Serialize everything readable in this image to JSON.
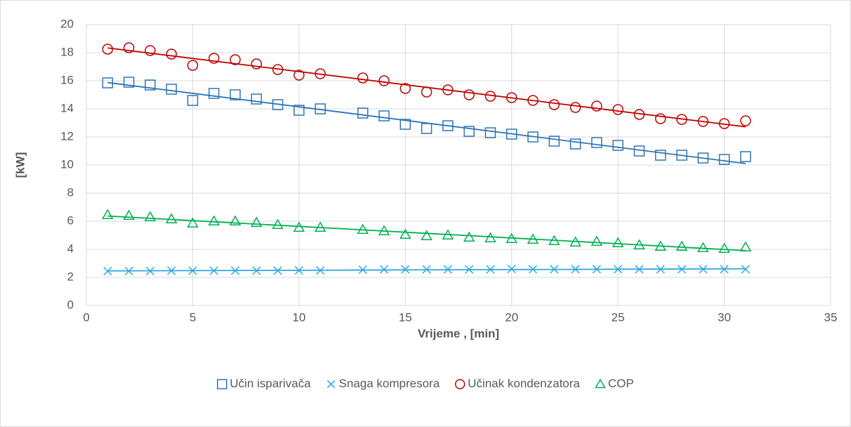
{
  "chart_data": {
    "type": "scatter",
    "x_label": "Vrijeme , [min]",
    "y_label": "[kW]",
    "xlim": [
      0,
      35
    ],
    "xticks": [
      0,
      5,
      10,
      15,
      20,
      25,
      30,
      35
    ],
    "ylim": [
      0,
      20
    ],
    "yticks": [
      0,
      2,
      4,
      6,
      8,
      10,
      12,
      14,
      16,
      18,
      20
    ],
    "grid": true,
    "trendline": "linear",
    "legend": "bottom",
    "x": [
      1,
      2,
      3,
      4,
      5,
      6,
      7,
      8,
      9,
      10,
      11,
      13,
      14,
      15,
      16,
      17,
      18,
      19,
      20,
      21,
      22,
      23,
      24,
      25,
      26,
      27,
      28,
      29,
      30,
      31
    ],
    "series": [
      {
        "name": "Učin isparivača",
        "color": "#2e75b6",
        "marker": "square",
        "values": [
          15.85,
          15.9,
          15.7,
          15.4,
          14.6,
          15.1,
          15.0,
          14.7,
          14.3,
          13.9,
          14.0,
          13.7,
          13.5,
          12.9,
          12.6,
          12.8,
          12.4,
          12.3,
          12.2,
          12.0,
          11.7,
          11.5,
          11.6,
          11.4,
          11.0,
          10.7,
          10.7,
          10.5,
          10.4,
          10.6
        ]
      },
      {
        "name": "Snaga kompresora",
        "color": "#2ea8df",
        "marker": "x",
        "values": [
          2.45,
          2.45,
          2.45,
          2.48,
          2.48,
          2.48,
          2.48,
          2.48,
          2.48,
          2.5,
          2.5,
          2.55,
          2.57,
          2.57,
          2.57,
          2.57,
          2.57,
          2.57,
          2.6,
          2.58,
          2.58,
          2.58,
          2.58,
          2.58,
          2.58,
          2.58,
          2.58,
          2.58,
          2.58,
          2.58
        ]
      },
      {
        "name": "Učinak kondenzatora",
        "color": "#c00000",
        "marker": "circle",
        "values": [
          18.25,
          18.35,
          18.15,
          17.9,
          17.1,
          17.6,
          17.5,
          17.2,
          16.8,
          16.4,
          16.5,
          16.2,
          16.0,
          15.45,
          15.2,
          15.35,
          15.0,
          14.9,
          14.8,
          14.6,
          14.3,
          14.1,
          14.2,
          13.95,
          13.6,
          13.3,
          13.25,
          13.1,
          12.95,
          13.15
        ]
      },
      {
        "name": "COP",
        "color": "#00b050",
        "marker": "triangle",
        "values": [
          6.45,
          6.4,
          6.3,
          6.15,
          5.85,
          6.0,
          6.0,
          5.9,
          5.75,
          5.55,
          5.55,
          5.4,
          5.3,
          5.05,
          4.95,
          5.0,
          4.85,
          4.8,
          4.75,
          4.7,
          4.6,
          4.5,
          4.55,
          4.45,
          4.3,
          4.2,
          4.2,
          4.1,
          4.05,
          4.15
        ]
      }
    ]
  }
}
